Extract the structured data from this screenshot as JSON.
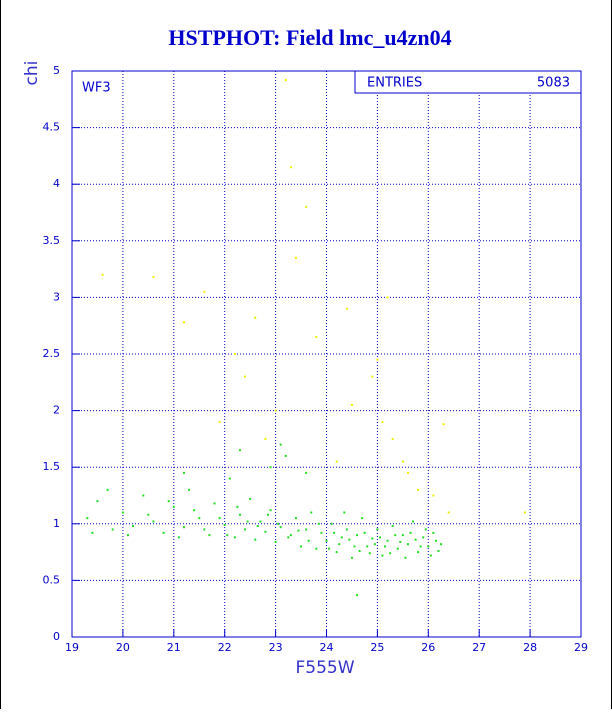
{
  "chart_data": {
    "type": "scatter",
    "title": "HSTPHOT: Field lmc_u4zn04",
    "x_label": "F555W",
    "y_label": "chi",
    "annotation": "WF3",
    "entries_label": "ENTRIES",
    "entries_value": 5083,
    "xlim": [
      19,
      29
    ],
    "ylim": [
      0,
      5
    ],
    "xticks": [
      19,
      20,
      21,
      22,
      23,
      24,
      25,
      26,
      27,
      28,
      29
    ],
    "yticks": [
      0,
      0.5,
      1,
      1.5,
      2,
      2.5,
      3,
      3.5,
      4,
      4.5,
      5
    ],
    "grid": true,
    "series": [
      {
        "color": "#22dd22",
        "x": [
          19.3,
          19.5,
          19.8,
          20.0,
          20.2,
          20.4,
          20.6,
          20.8,
          21.0,
          21.2,
          21.3,
          21.5,
          21.7,
          21.8,
          22.0,
          22.1,
          22.2,
          22.3,
          22.4,
          22.5,
          22.6,
          22.7,
          22.8,
          22.9,
          23.0,
          23.1,
          23.2,
          23.3,
          23.4,
          23.5,
          23.6,
          23.7,
          23.8,
          23.9,
          24.0,
          24.1,
          24.2,
          24.3,
          24.4,
          24.5,
          24.6,
          24.7,
          24.8,
          24.9,
          25.0,
          25.1,
          25.2,
          25.3,
          25.4,
          25.5,
          25.6,
          25.7,
          25.8,
          25.9,
          26.0,
          26.1,
          26.2,
          19.4,
          19.7,
          20.1,
          20.5,
          20.9,
          21.1,
          21.4,
          21.6,
          21.9,
          22.05,
          22.25,
          22.45,
          22.65,
          22.85,
          23.05,
          23.25,
          23.45,
          23.65,
          23.85,
          24.05,
          24.15,
          24.25,
          24.35,
          24.45,
          24.55,
          24.65,
          24.75,
          24.85,
          24.95,
          25.05,
          25.15,
          25.25,
          25.35,
          25.45,
          25.55,
          25.65,
          25.75,
          25.85,
          25.95,
          26.05,
          26.15,
          26.25,
          22.3,
          22.9,
          23.6,
          24.6,
          23.1,
          21.2
        ],
        "values": [
          1.05,
          1.2,
          0.95,
          1.1,
          0.98,
          1.25,
          1.02,
          0.92,
          1.15,
          0.97,
          1.3,
          1.05,
          0.9,
          1.18,
          0.99,
          1.4,
          0.88,
          1.08,
          0.95,
          1.22,
          0.86,
          1.02,
          0.93,
          1.12,
          0.84,
          0.97,
          1.6,
          0.9,
          1.05,
          0.8,
          0.95,
          1.1,
          0.78,
          0.92,
          0.85,
          1.0,
          0.75,
          0.88,
          0.95,
          0.7,
          0.9,
          1.05,
          0.8,
          0.87,
          0.95,
          0.72,
          0.85,
          0.98,
          0.78,
          0.9,
          0.82,
          1.02,
          0.75,
          0.88,
          0.8,
          0.92,
          0.76,
          0.92,
          1.3,
          0.9,
          1.08,
          1.2,
          0.88,
          1.12,
          0.95,
          1.05,
          0.9,
          1.15,
          1.02,
          0.98,
          1.08,
          1.0,
          0.88,
          0.94,
          0.85,
          1.0,
          0.78,
          0.92,
          0.82,
          1.1,
          0.86,
          0.8,
          0.76,
          0.92,
          0.74,
          0.82,
          0.88,
          0.8,
          0.74,
          0.9,
          0.84,
          0.7,
          0.92,
          0.86,
          0.8,
          0.95,
          0.72,
          0.85,
          0.82,
          1.65,
          1.5,
          1.45,
          0.37,
          1.7,
          1.45
        ]
      },
      {
        "color": "#eeee00",
        "x": [
          19.6,
          20.6,
          21.2,
          21.6,
          22.2,
          22.6,
          23.2,
          23.3,
          23.4,
          23.6,
          23.8,
          24.4,
          24.5,
          24.9,
          25.0,
          25.1,
          25.3,
          25.5,
          25.6,
          25.8,
          26.1,
          26.3,
          26.4,
          27.9,
          22.8,
          23.0,
          21.9,
          24.2,
          25.2,
          22.4
        ],
        "values": [
          3.2,
          3.18,
          2.78,
          3.05,
          2.5,
          2.82,
          4.92,
          4.15,
          3.35,
          3.8,
          2.65,
          2.9,
          2.05,
          2.3,
          2.45,
          1.9,
          1.75,
          1.55,
          1.45,
          1.3,
          1.25,
          1.88,
          1.1,
          1.1,
          1.75,
          2.0,
          1.9,
          1.55,
          3.0,
          2.3
        ]
      }
    ]
  }
}
